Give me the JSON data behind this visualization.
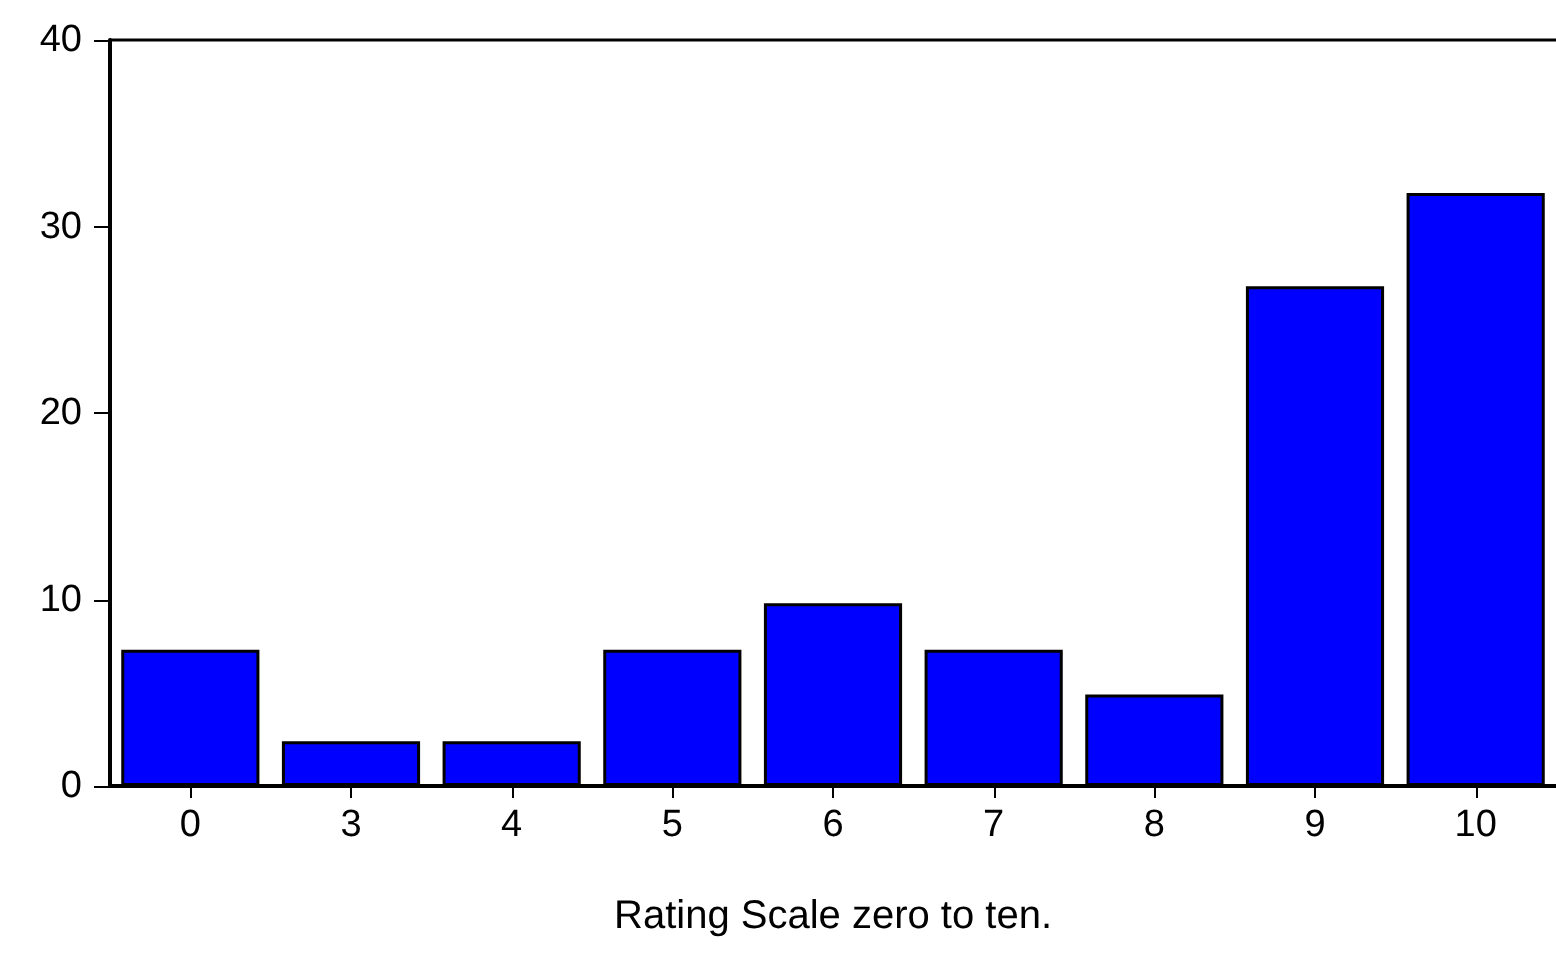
{
  "chart_data": {
    "type": "bar",
    "xlabel": "Rating Scale zero to ten.",
    "categories": [
      "0",
      "3",
      "4",
      "5",
      "6",
      "7",
      "8",
      "9",
      "10"
    ],
    "values": [
      7.3,
      2.4,
      2.4,
      7.3,
      9.8,
      7.3,
      4.9,
      26.8,
      31.8
    ],
    "color": "#0000ff",
    "ylim": [
      0,
      40
    ],
    "yticks": [
      0,
      10,
      20,
      30,
      40
    ],
    "grid": false
  }
}
